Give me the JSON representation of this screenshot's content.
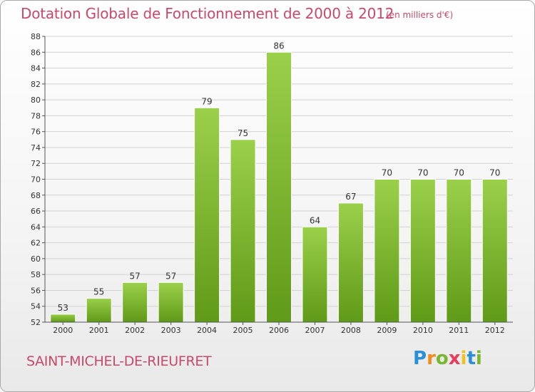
{
  "chart_data": {
    "type": "bar",
    "title": "Dotation Globale de Fonctionnement de 2000 à 2012",
    "subtitle": "(en milliers d'€)",
    "categories": [
      "2000",
      "2001",
      "2002",
      "2003",
      "2004",
      "2005",
      "2006",
      "2007",
      "2008",
      "2009",
      "2010",
      "2011",
      "2012"
    ],
    "values": [
      53,
      55,
      57,
      57,
      79,
      75,
      86,
      64,
      67,
      70,
      70,
      70,
      70
    ],
    "xlabel": "",
    "ylabel": "",
    "ylim": [
      52,
      88
    ],
    "yticks": [
      52,
      54,
      56,
      58,
      60,
      62,
      64,
      66,
      68,
      70,
      72,
      74,
      76,
      78,
      80,
      82,
      84,
      86,
      88
    ],
    "grid": true,
    "bar_color": "#7ab72f"
  },
  "footer": {
    "commune": "SAINT-MICHEL-DE-RIEUFRET",
    "logo_letters": [
      "P",
      "r",
      "o",
      "x",
      "i",
      "t",
      "i"
    ],
    "logo_colors": [
      "#2a8fd8",
      "#f28a1c",
      "#79b72c",
      "#e73c5b",
      "#f2c21c",
      "#2a8fd8",
      "#79b72c"
    ]
  }
}
